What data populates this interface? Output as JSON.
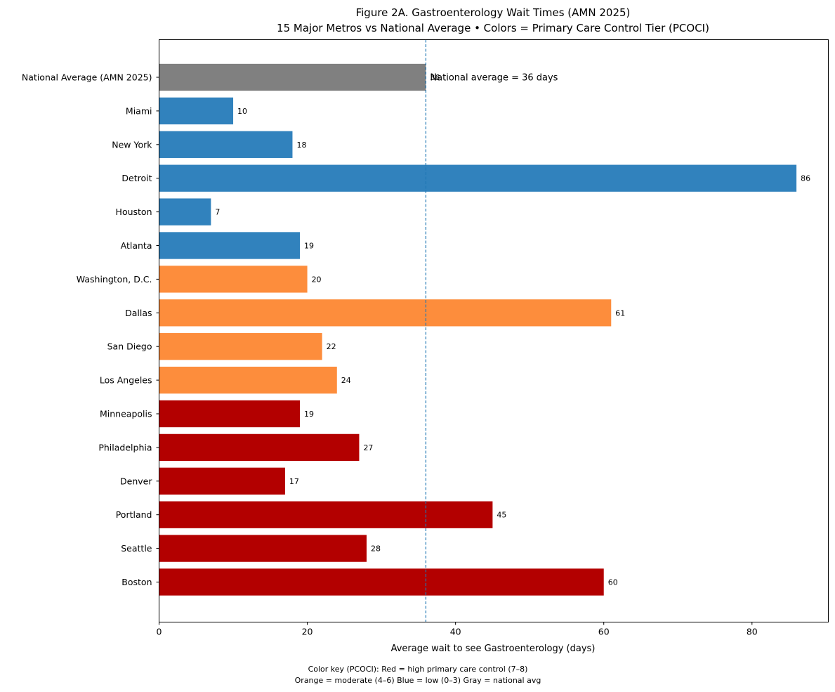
{
  "chart_data": {
    "type": "bar",
    "orientation": "horizontal",
    "title": "Figure 2A. Gastroenterology Wait Times (AMN 2025)",
    "subtitle": "15 Major Metros vs National Average • Colors = Primary Care Control Tier (PCOCI)",
    "xlabel": "Average wait to see Gastroenterology (days)",
    "ylabel": "",
    "xlim": [
      0,
      90.3
    ],
    "xticks": [
      0,
      20,
      40,
      60,
      80
    ],
    "grid": false,
    "categories": [
      "National Average (AMN 2025)",
      "Miami",
      "New York",
      "Detroit",
      "Houston",
      "Atlanta",
      "Washington, D.C.",
      "Dallas",
      "San Diego",
      "Los Angeles",
      "Minneapolis",
      "Philadelphia",
      "Denver",
      "Portland",
      "Seattle",
      "Boston"
    ],
    "values": [
      36,
      10,
      18,
      86,
      7,
      19,
      20,
      61,
      22,
      24,
      19,
      27,
      17,
      45,
      28,
      60
    ],
    "tiers": [
      "national",
      "low",
      "low",
      "low",
      "low",
      "low",
      "moderate",
      "moderate",
      "moderate",
      "moderate",
      "high",
      "high",
      "high",
      "high",
      "high",
      "high"
    ],
    "tier_colors": {
      "national": "#808080",
      "low": "#3182bd",
      "moderate": "#fd8d3c",
      "high": "#b30000"
    },
    "reference_line": {
      "value": 36,
      "label": "National average = 36 days",
      "color": "#1f77b4",
      "style": "dashed"
    },
    "color_key": {
      "line1": "Color key (PCOCI):  Red = high primary care control (7–8)",
      "line2": "Orange = moderate (4–6)   Blue = low (0–3)   Gray = national avg"
    }
  }
}
